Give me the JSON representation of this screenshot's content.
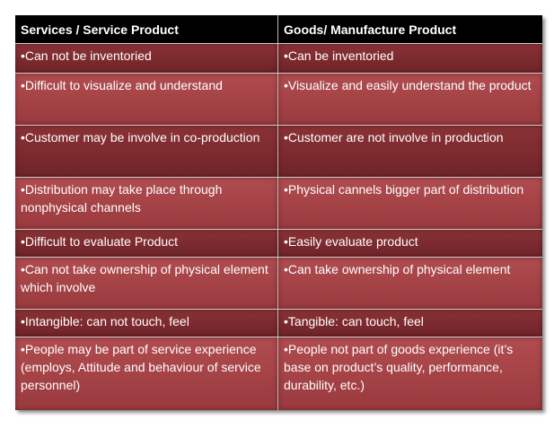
{
  "table": {
    "headers": [
      "Services / Service Product",
      "Goods/ Manufacture Product"
    ],
    "rows": [
      [
        "Can not be inventoried",
        "Can be inventoried"
      ],
      [
        "Difficult to visualize and understand",
        "Visualize and easily understand  the product"
      ],
      [
        "Customer may be involve in co-production",
        "Customer are not involve in production"
      ],
      [
        "Distribution may take place through nonphysical channels",
        "Physical cannels  bigger part of distribution"
      ],
      [
        "Difficult to evaluate Product",
        "Easily evaluate product"
      ],
      [
        "Can not take ownership of physical element which involve",
        "Can take ownership  of physical element"
      ],
      [
        "Intangible: can not touch,  feel",
        "Tangible: can touch,  feel"
      ],
      [
        "People may be part of service experience (employs, Attitude and behaviour of service personnel)",
        "People not part of goods experience (it’s base on product’s quality, performance, durability, etc.)"
      ]
    ]
  },
  "colors": {
    "header_bg": "#000000",
    "row_dark": "#7c2b2f",
    "row_light": "#a64347",
    "text": "#ffffff"
  }
}
